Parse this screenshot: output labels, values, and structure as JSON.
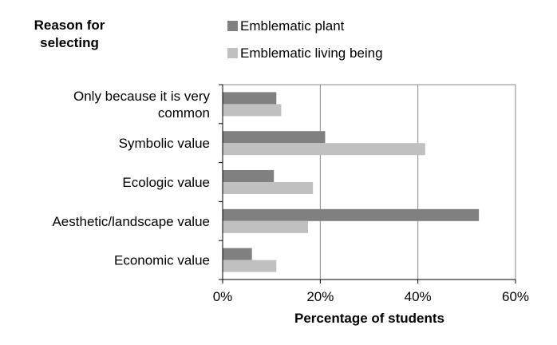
{
  "chart_data": {
    "type": "bar",
    "orientation": "horizontal",
    "title": "",
    "ylabel": "Reason for selecting",
    "xlabel": "Percentage of students",
    "categories": [
      "Only because it is very common",
      "Symbolic value",
      "Ecologic value",
      "Aesthetic/landscape value",
      "Economic value"
    ],
    "category_lines": [
      [
        "Only because it is very",
        "common"
      ],
      [
        "Symbolic value"
      ],
      [
        "Ecologic value"
      ],
      [
        "Aesthetic/landscape value"
      ],
      [
        "Economic value"
      ]
    ],
    "series": [
      {
        "name": "Emblematic plant",
        "color": "#808080",
        "values": [
          0.11,
          0.21,
          0.105,
          0.525,
          0.06
        ]
      },
      {
        "name": "Emblematic living being",
        "color": "#c0c0c0",
        "values": [
          0.12,
          0.415,
          0.185,
          0.175,
          0.11
        ]
      }
    ],
    "xlim": [
      0,
      0.6
    ],
    "xticks": [
      0,
      0.2,
      0.4,
      0.6
    ],
    "xtick_labels": [
      "0%",
      "20%",
      "40%",
      "60%"
    ],
    "grid": true,
    "legend_position": "top"
  }
}
